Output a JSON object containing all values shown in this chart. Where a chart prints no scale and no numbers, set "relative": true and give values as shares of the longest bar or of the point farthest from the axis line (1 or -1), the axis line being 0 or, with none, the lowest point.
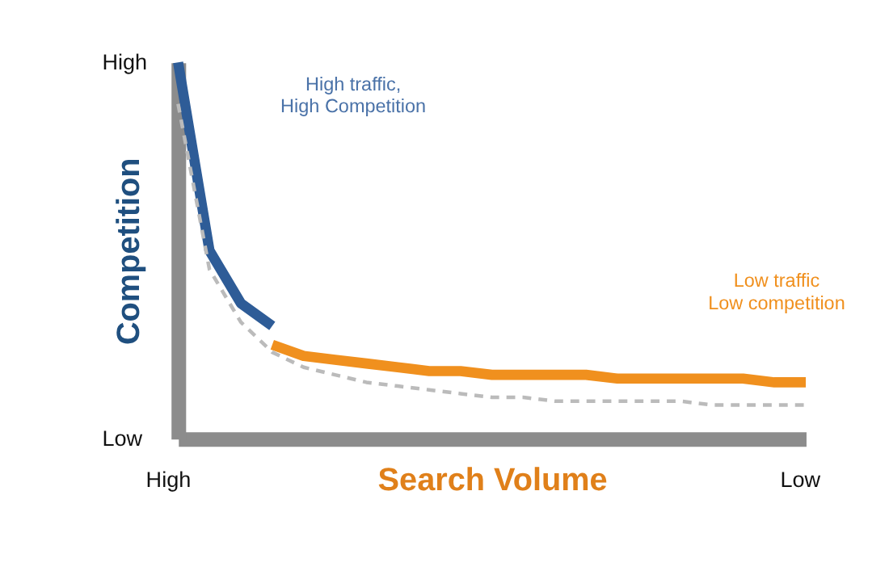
{
  "chart_data": {
    "type": "line",
    "relative": true,
    "xlabel": "Search Volume",
    "ylabel": "Competition",
    "categories": [
      null,
      null,
      null,
      null,
      null,
      null,
      null,
      null,
      null,
      null,
      null,
      null,
      null,
      null,
      null,
      null,
      null,
      null,
      null,
      null,
      null
    ],
    "series": [
      {
        "color": "#2e5c97",
        "values": [
          1,
          0.5,
          0.36,
          0.3,
          null,
          null,
          null,
          null,
          null,
          null,
          null,
          null,
          null,
          null,
          null,
          null,
          null,
          null,
          null,
          null,
          null
        ]
      },
      {
        "color": "#f0901e",
        "values": [
          null,
          null,
          null,
          0.25,
          0.22,
          0.21,
          0.2,
          0.19,
          0.18,
          0.18,
          0.17,
          0.17,
          0.17,
          0.17,
          0.16,
          0.16,
          0.16,
          0.16,
          0.16,
          0.15,
          0.15
        ]
      },
      {
        "color": "#bbbbbb",
        "line_style": "dashed",
        "values": [
          0.89,
          0.45,
          0.31,
          0.23,
          0.19,
          0.17,
          0.15,
          0.14,
          0.13,
          0.12,
          0.11,
          0.11,
          0.1,
          0.1,
          0.1,
          0.1,
          0.1,
          0.09,
          0.09,
          0.09,
          0.09
        ]
      }
    ],
    "annotations": [
      "High",
      "Low",
      "High",
      "Low",
      "High traffic,\nHigh Competition",
      "Low traffic\nLow competition"
    ],
    "grid": false
  }
}
